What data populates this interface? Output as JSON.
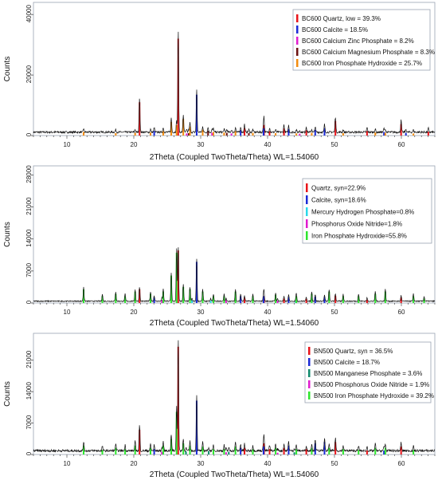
{
  "figure": {
    "background": "#ffffff",
    "frame_color": "#9aa3b2",
    "trace_color": "#111111"
  },
  "chart_data": [
    {
      "type": "bar",
      "panel": "top",
      "xlabel": "2Theta (Coupled TwoTheta/Theta) WL=1.54060",
      "ylabel": "Counts",
      "xlim": [
        5,
        65
      ],
      "ylim": [
        0,
        44000
      ],
      "xticks": [
        10,
        20,
        30,
        40,
        50,
        60
      ],
      "yticks": [
        0,
        20000,
        40000
      ],
      "ytick_labels": [
        "0",
        "20000",
        "40000"
      ],
      "legend_position": "top-right",
      "series": [
        {
          "name": "BC600 Quartz, low = 39.3%",
          "color": "#e8141a",
          "x": [
            20.86,
            26.64,
            36.55,
            39.47,
            40.3,
            42.45,
            45.79,
            50.14,
            54.87,
            59.96,
            64.03
          ],
          "values": [
            11000,
            32000,
            2500,
            3500,
            1500,
            2400,
            1800,
            4800,
            1500,
            3800,
            1300
          ]
        },
        {
          "name": "BC600 Calcite = 18.5%",
          "color": "#1b2ad6",
          "x": [
            23.05,
            29.4,
            35.97,
            39.4,
            43.15,
            47.12,
            48.51,
            57.4,
            60.68
          ],
          "values": [
            1500,
            13500,
            1800,
            2400,
            2200,
            1900,
            2500,
            1200,
            900
          ]
        },
        {
          "name": "BC600 Calcium Zinc Phosphate = 8.2%",
          "color": "#e01ccf",
          "x": [
            27.9,
            31.7,
            34.6,
            44.8
          ],
          "values": [
            700,
            900,
            700,
            600
          ]
        },
        {
          "name": "BC600 Calcium Magnesium Phosphate = 8.3%",
          "color": "#6b1111",
          "x": [
            28.2,
            31.1,
            33.9,
            37.2
          ],
          "values": [
            800,
            1500,
            900,
            800
          ]
        },
        {
          "name": "BC600 Iron Phosphate Hydroxide = 25.7%",
          "color": "#f28c0f",
          "x": [
            12.5,
            17.3,
            20.2,
            22.5,
            24.4,
            25.6,
            26.4,
            27.4,
            28.4,
            30.3,
            31.9,
            33.5,
            35.2,
            37.8,
            41.2,
            44.3,
            46.6,
            51.3,
            56.1,
            57.6,
            61.8
          ],
          "values": [
            1200,
            800,
            900,
            1000,
            1500,
            4500,
            3500,
            5500,
            3000,
            2000,
            1200,
            1000,
            1500,
            900,
            800,
            700,
            900,
            800,
            1000,
            900,
            700
          ]
        }
      ]
    },
    {
      "type": "bar",
      "panel": "middle",
      "xlabel": "2Theta (Coupled TwoTheta/Theta) WL=1.54060",
      "ylabel": "Counts",
      "xlim": [
        5,
        65
      ],
      "ylim": [
        0,
        30000
      ],
      "xticks": [
        10,
        20,
        30,
        40,
        50,
        60
      ],
      "yticks": [
        0,
        7000,
        14000,
        21000,
        28000
      ],
      "ytick_labels": [
        "0",
        "7000",
        "14000",
        "21000",
        "28000"
      ],
      "legend_position": "top-right",
      "series": [
        {
          "name": "Quartz, syn=22.9%",
          "color": "#e8141a",
          "x": [
            20.86,
            26.64,
            36.55,
            39.47,
            42.45,
            45.79,
            50.14,
            54.87,
            59.96
          ],
          "values": [
            3000,
            11500,
            1200,
            1500,
            1000,
            900,
            1600,
            700,
            1200
          ]
        },
        {
          "name": "Calcite, syn=18.6%",
          "color": "#1b2ad6",
          "x": [
            23.05,
            29.4,
            35.97,
            39.4,
            43.15,
            47.12,
            48.51
          ],
          "values": [
            1200,
            9000,
            1500,
            1500,
            1300,
            1400,
            1300
          ]
        },
        {
          "name": "Mercury Hydrogen Phosphate=0.8%",
          "color": "#2ad8e8",
          "x": [
            28.7,
            31.5,
            44.2
          ],
          "values": [
            600,
            500,
            400
          ]
        },
        {
          "name": "Phosphorus Oxide Nitride=1.8%",
          "color": "#e01ccf",
          "x": [
            24.2,
            33.8,
            41.5
          ],
          "values": [
            700,
            600,
            500
          ]
        },
        {
          "name": "Iron Phosphate Hydroxide=55.8%",
          "color": "#2ee62e",
          "x": [
            12.5,
            15.3,
            17.3,
            18.7,
            20.2,
            22.5,
            24.4,
            25.6,
            26.4,
            27.4,
            28.4,
            30.3,
            31.9,
            33.5,
            35.2,
            37.8,
            41.2,
            44.3,
            46.6,
            49.2,
            51.3,
            53.6,
            56.1,
            57.6,
            61.8,
            63.4
          ],
          "values": [
            3000,
            1500,
            2000,
            1500,
            2500,
            2000,
            2500,
            6000,
            11000,
            3500,
            3000,
            2500,
            1500,
            1500,
            2500,
            1500,
            1800,
            1500,
            2000,
            2500,
            1500,
            1500,
            2000,
            2500,
            1500,
            1000
          ]
        }
      ]
    },
    {
      "type": "bar",
      "panel": "bottom",
      "xlabel": "2Theta (Coupled TwoTheta/Theta) WL=1.54060",
      "ylabel": "Counts",
      "xlim": [
        5,
        65
      ],
      "ylim": [
        0,
        27000
      ],
      "xticks": [
        10,
        20,
        30,
        40,
        50,
        60
      ],
      "yticks": [
        0,
        7000,
        14000,
        21000
      ],
      "ytick_labels": [
        "0",
        "7000",
        "14000",
        "21000"
      ],
      "legend_position": "top-right",
      "series": [
        {
          "name": "BN500 Quartz, syn = 36.5%",
          "color": "#e8141a",
          "x": [
            20.86,
            26.64,
            36.55,
            39.47,
            40.3,
            42.45,
            45.79,
            50.14,
            54.87,
            59.96
          ],
          "values": [
            5500,
            24000,
            1500,
            2500,
            1200,
            1500,
            1200,
            2800,
            900,
            1800
          ]
        },
        {
          "name": "BN500 Calcite = 18.7%",
          "color": "#1b2ad6",
          "x": [
            23.05,
            29.4,
            35.97,
            39.4,
            43.15,
            47.12,
            48.51,
            57.4
          ],
          "values": [
            1200,
            12000,
            1500,
            1800,
            2000,
            2500,
            2800,
            900
          ]
        },
        {
          "name": "BN500 Manganese Phosphate = 3.6%",
          "color": "#0f8a6d",
          "x": [
            27.8,
            31.2,
            34.2,
            44.0
          ],
          "values": [
            700,
            800,
            600,
            500
          ]
        },
        {
          "name": "BN500 Phosphorus Oxide Nitride = 1.9%",
          "color": "#e01ccf",
          "x": [
            24.2,
            33.8,
            41.5
          ],
          "values": [
            600,
            500,
            400
          ]
        },
        {
          "name": "BN500 Iron Phosphate Hydroxide = 39.2%",
          "color": "#2ee62e",
          "x": [
            12.5,
            15.3,
            17.3,
            18.7,
            20.2,
            22.5,
            24.4,
            25.6,
            26.4,
            27.4,
            28.4,
            30.3,
            31.9,
            33.5,
            35.2,
            37.8,
            41.2,
            44.3,
            46.6,
            49.2,
            51.3,
            53.6,
            56.1,
            57.6,
            61.8
          ],
          "values": [
            2000,
            1000,
            1500,
            1200,
            2000,
            1500,
            2000,
            3500,
            9500,
            2500,
            2000,
            1800,
            1200,
            1200,
            1800,
            1200,
            1500,
            1200,
            1500,
            1500,
            1200,
            1000,
            1500,
            1500,
            1000
          ]
        }
      ]
    }
  ]
}
